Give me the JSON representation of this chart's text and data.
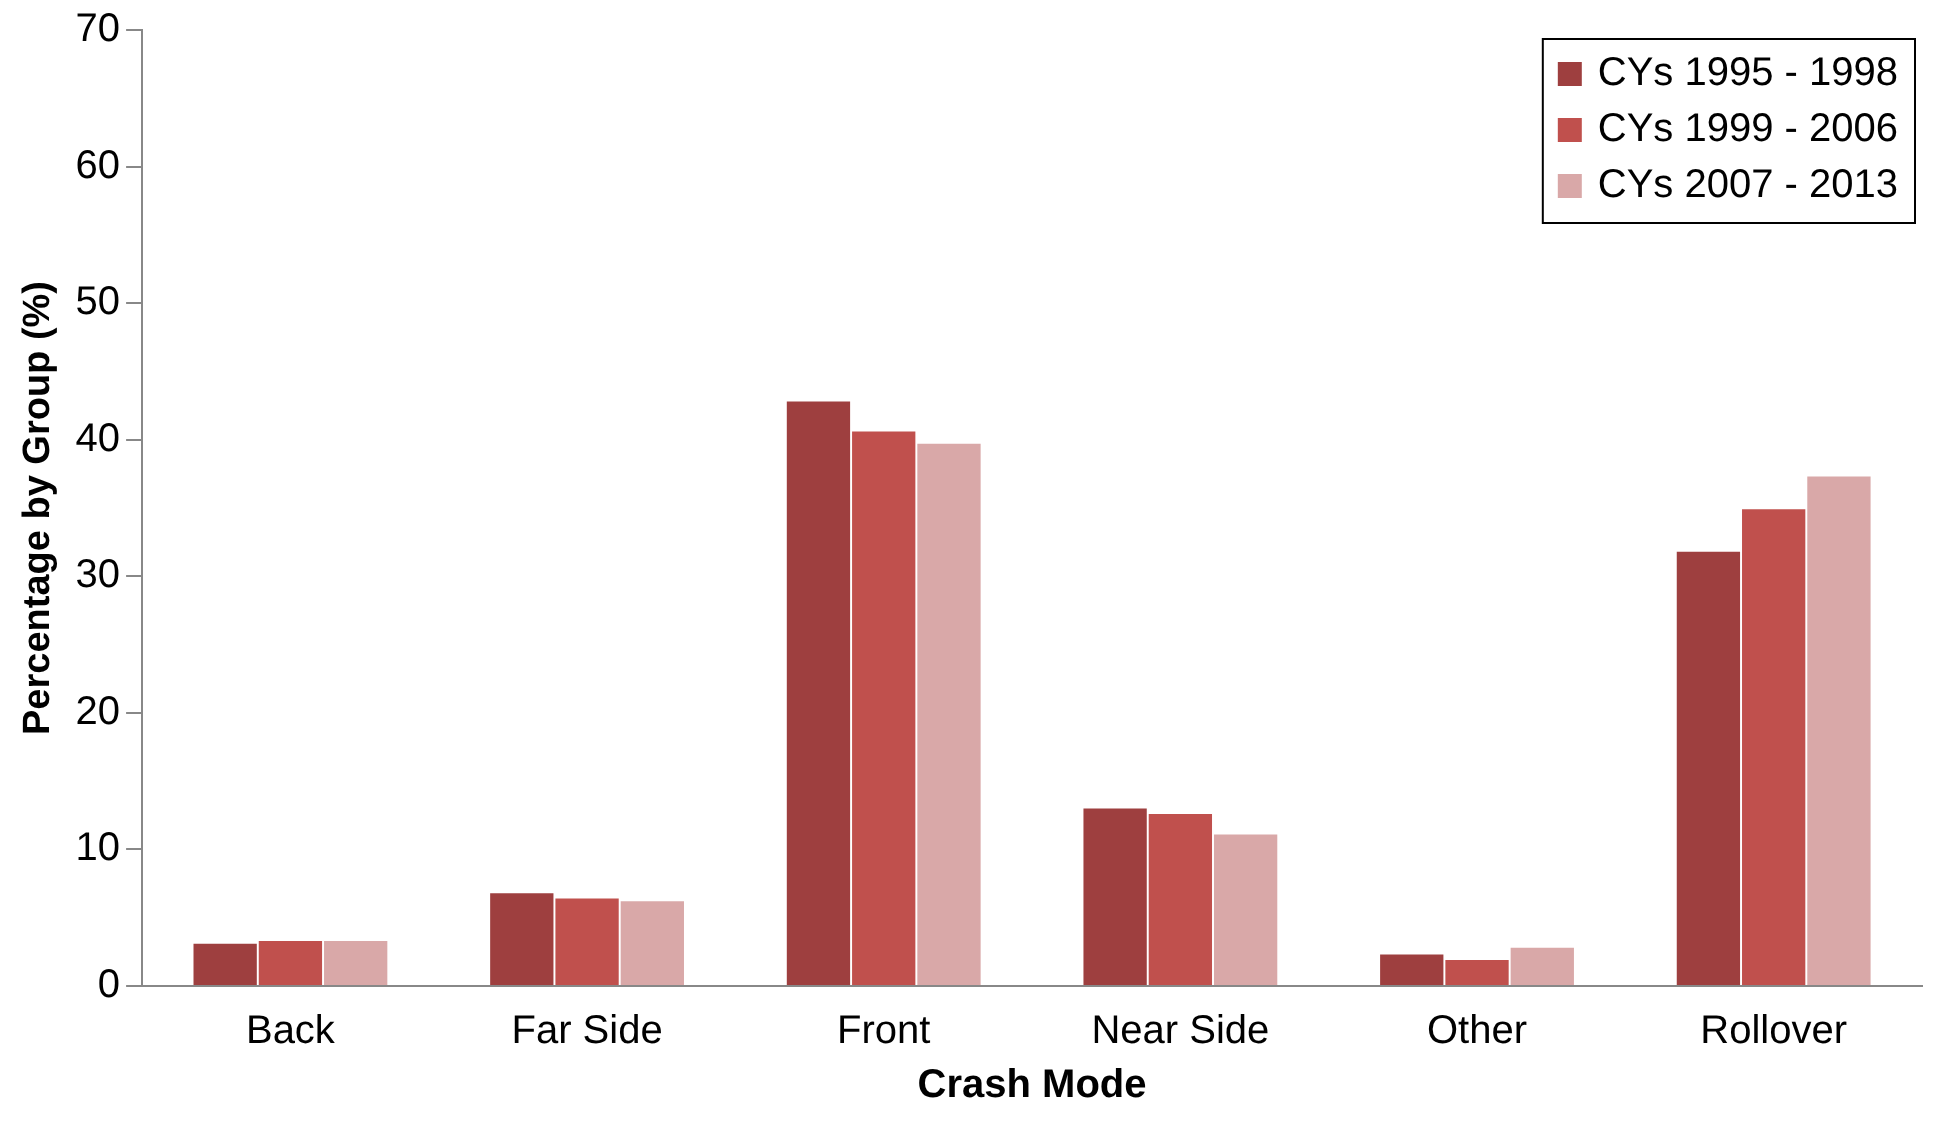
{
  "chart_data": {
    "type": "bar",
    "xlabel": "Crash Mode",
    "ylabel": "Percentage by Group (%)",
    "categories": [
      "Back",
      "Far Side",
      "Front",
      "Near Side",
      "Other",
      "Rollover"
    ],
    "series": [
      {
        "name": "CYs 1995 - 1998",
        "color": "#9e3f3f",
        "values": [
          3.1,
          6.8,
          42.8,
          13.0,
          2.3,
          31.8
        ]
      },
      {
        "name": "CYs 1999 - 2006",
        "color": "#c0504d",
        "values": [
          3.3,
          6.4,
          40.6,
          12.6,
          1.9,
          34.9
        ]
      },
      {
        "name": "CYs 2007 - 2013",
        "color": "#d9a8a8",
        "values": [
          3.3,
          6.2,
          39.7,
          11.1,
          2.8,
          37.3
        ]
      }
    ],
    "ylim": [
      0,
      70
    ],
    "yticks": [
      0,
      10,
      20,
      30,
      40,
      50,
      60,
      70
    ],
    "grid": false,
    "legend": "top right"
  }
}
